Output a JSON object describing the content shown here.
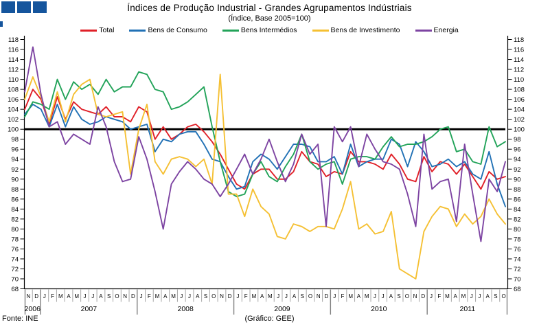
{
  "header": {
    "title": "Índices de Produção Industrial - Grandes Agrupamentos Indústriais",
    "subtitle": "(Índice, Base 2005=100)"
  },
  "footer": {
    "source": "Fonte: INE",
    "credit": "(Gráfico: GEE)"
  },
  "logo": {
    "color": "#15559d",
    "square_count": 3
  },
  "colors": {
    "axis": "#000000",
    "baseline": "#000000",
    "month_separator": "#a6a6a6",
    "year_separator": "#808080"
  },
  "chart_data": {
    "type": "line",
    "title": "Índices de Produção Industrial - Grandes Agrupamentos Indústriais",
    "subtitle": "(Índice, Base 2005=100)",
    "ylim": [
      68,
      118
    ],
    "ytick_step": 2,
    "baseline": 100,
    "grid": "off",
    "legend_position": "top",
    "x_months": [
      "N",
      "D",
      "J",
      "F",
      "M",
      "A",
      "M",
      "J",
      "J",
      "A",
      "S",
      "O",
      "N",
      "D",
      "J",
      "F",
      "M",
      "A",
      "M",
      "J",
      "J",
      "A",
      "S",
      "O",
      "N",
      "D",
      "J",
      "F",
      "M",
      "A",
      "M",
      "J",
      "J",
      "A",
      "S",
      "O",
      "N",
      "D",
      "J",
      "F",
      "M",
      "A",
      "M",
      "J",
      "J",
      "A",
      "S",
      "O",
      "N",
      "D",
      "J",
      "F",
      "M",
      "A",
      "M",
      "J",
      "J",
      "A",
      "S",
      "O"
    ],
    "x_years": [
      {
        "label": "2006",
        "start": 0,
        "end": 1
      },
      {
        "label": "2007",
        "start": 2,
        "end": 13
      },
      {
        "label": "2008",
        "start": 14,
        "end": 25
      },
      {
        "label": "2009",
        "start": 26,
        "end": 37
      },
      {
        "label": "2010",
        "start": 38,
        "end": 49
      },
      {
        "label": "2011",
        "start": 50,
        "end": 59
      }
    ],
    "series": [
      {
        "name": "Total",
        "color": "#e02028",
        "values": [
          104,
          108,
          106,
          101,
          106.5,
          102,
          105.5,
          104,
          103.5,
          103,
          104.5,
          102.5,
          102.5,
          101.5,
          104.5,
          103.5,
          98,
          100.5,
          98,
          99,
          100.5,
          101,
          99.5,
          97.5,
          95,
          92,
          89,
          88,
          91,
          92,
          92,
          90,
          90,
          91.5,
          95.5,
          93.5,
          93,
          90.5,
          91.5,
          91,
          95.5,
          93.5,
          93.5,
          93,
          92,
          95,
          93,
          90,
          89.5,
          94.5,
          91.5,
          93.5,
          93,
          91,
          93,
          90.5,
          88,
          91.5,
          90,
          90.5
        ]
      },
      {
        "name": "Bens de Consumo",
        "color": "#2171b5",
        "values": [
          103,
          105,
          104,
          100.5,
          105,
          100.5,
          104.5,
          102,
          101,
          101.5,
          102.5,
          102,
          101.5,
          100,
          100.5,
          101,
          95.5,
          98,
          97.5,
          99,
          99.5,
          99.5,
          97,
          94,
          93.5,
          90.5,
          88,
          88.5,
          93.5,
          95,
          94,
          92,
          94.5,
          97,
          97,
          96.5,
          93.5,
          93.5,
          94.5,
          91,
          97,
          92.5,
          93.5,
          94,
          94,
          98,
          97,
          92.5,
          97.5,
          95.5,
          92.5,
          93,
          94,
          92.5,
          93.5,
          91,
          90,
          95.5,
          89,
          84.5
        ]
      },
      {
        "name": "Bens Intermédios",
        "color": "#22a359",
        "values": [
          102.5,
          105.5,
          105,
          104,
          110,
          106,
          109.5,
          108,
          109,
          107,
          110,
          107.5,
          108.5,
          108.5,
          111.5,
          111,
          108,
          107.5,
          104,
          104.5,
          105.5,
          107,
          108.5,
          100.5,
          93.5,
          87.5,
          86.5,
          87,
          91,
          93.5,
          90.5,
          89.5,
          92.5,
          95,
          99,
          93.5,
          92,
          93,
          93.5,
          89,
          94,
          94.5,
          94.5,
          94,
          96.5,
          98.5,
          96.5,
          97,
          97,
          97.5,
          98.5,
          100,
          100.5,
          95.5,
          96,
          93.5,
          93,
          100.5,
          96.5,
          97.5
        ]
      },
      {
        "name": "Bens de Investimento",
        "color": "#f5c033",
        "values": [
          106,
          110.5,
          106.5,
          101.5,
          107.5,
          101.5,
          107,
          109,
          110,
          103,
          102.5,
          103,
          103.5,
          91,
          100,
          105,
          93.5,
          91,
          94,
          94.5,
          94,
          92.5,
          94,
          89,
          111,
          87,
          87,
          82.5,
          88,
          84.5,
          83,
          78.5,
          78,
          81,
          80.5,
          79.5,
          80.5,
          80.5,
          80,
          84,
          89.5,
          80,
          81,
          79,
          79.5,
          83.5,
          72,
          71,
          70,
          79.5,
          82.5,
          84.5,
          84,
          80.5,
          83,
          81,
          82.5,
          86,
          83,
          81
        ]
      },
      {
        "name": "Energia",
        "color": "#7d44a2",
        "values": [
          107.5,
          116.5,
          107,
          100.5,
          101.5,
          97,
          99,
          98,
          97,
          104.5,
          100.5,
          93.5,
          89.5,
          90,
          98.5,
          94,
          87.5,
          80,
          89,
          91.5,
          93.5,
          92,
          90,
          89,
          86.5,
          89,
          92,
          95,
          91,
          94,
          98,
          93.5,
          89.5,
          93,
          99,
          95,
          97,
          80.5,
          100.5,
          97.5,
          100.5,
          92.5,
          99,
          96,
          93.5,
          93,
          92,
          87,
          80.5,
          99,
          88,
          89.5,
          90,
          81.5,
          97,
          87,
          77.5,
          90,
          87.5,
          93.5
        ]
      }
    ]
  }
}
